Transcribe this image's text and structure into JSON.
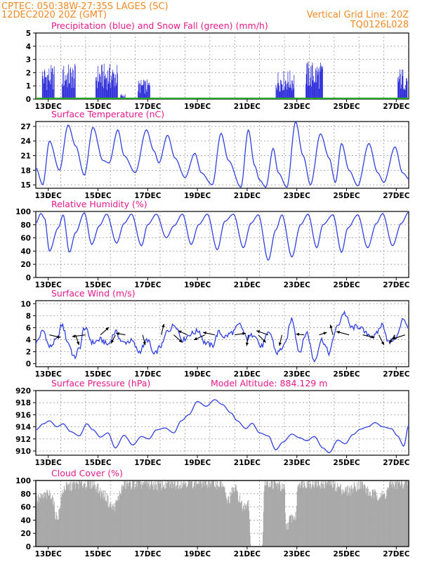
{
  "header": {
    "line1": "CPTEC:   050:38W-27:35S   LAGES (SC)",
    "line2": "12DEC2020 20Z (GMT)",
    "grid_note": "Vertical Grid Line: 20Z",
    "run_code": "TQ0126L028"
  },
  "colors": {
    "header": "#f08a24",
    "title": "#e6198c",
    "series_line": "#3040e0",
    "snow": "#22aa22",
    "cloud": "#a9a9a9",
    "grid": "#9a9a9a"
  },
  "x_ticks": [
    "13DEC",
    "15DEC",
    "17DEC",
    "19DEC",
    "21DEC",
    "23DEC",
    "25DEC",
    "27DEC"
  ],
  "chart_data": [
    {
      "type": "bar",
      "title": "Precipitation (blue) and Snow Fall (green) (mm/h)",
      "ylim": [
        0,
        5
      ],
      "yticks": [
        0,
        1,
        2,
        3,
        4,
        5
      ],
      "grid": true,
      "series": [
        {
          "name": "Precipitation",
          "color": "#2323d8",
          "events": [
            {
              "start": 0.25,
              "end": 0.75,
              "peak": 2.6
            },
            {
              "start": 1.05,
              "end": 1.6,
              "peak": 2.7
            },
            {
              "start": 2.4,
              "end": 3.3,
              "peak": 2.7
            },
            {
              "start": 3.4,
              "end": 3.6,
              "peak": 0.4
            },
            {
              "start": 4.1,
              "end": 4.6,
              "peak": 1.5
            },
            {
              "start": 9.65,
              "end": 10.4,
              "peak": 2.2
            },
            {
              "start": 10.85,
              "end": 11.55,
              "peak": 2.9
            },
            {
              "start": 14.55,
              "end": 14.95,
              "peak": 2.4
            }
          ]
        },
        {
          "name": "Snow Fall",
          "values_constant": 0
        }
      ]
    },
    {
      "type": "line",
      "title": "Surface Temperature (nC)",
      "ylim": [
        14.3,
        28
      ],
      "yticks": [
        15,
        18,
        21,
        24,
        27
      ],
      "grid": true,
      "points": [
        [
          0,
          18.5
        ],
        [
          0.28,
          15
        ],
        [
          0.55,
          24
        ],
        [
          0.95,
          18
        ],
        [
          1.3,
          27.3
        ],
        [
          1.6,
          23
        ],
        [
          1.95,
          17
        ],
        [
          2.3,
          26.8
        ],
        [
          2.7,
          20
        ],
        [
          2.95,
          19.5
        ],
        [
          3.3,
          26.3
        ],
        [
          3.55,
          21
        ],
        [
          4.0,
          17.5
        ],
        [
          4.45,
          26.3
        ],
        [
          4.75,
          22
        ],
        [
          4.95,
          19.5
        ],
        [
          5.3,
          25.2
        ],
        [
          5.6,
          20.5
        ],
        [
          6.0,
          16.5
        ],
        [
          6.4,
          21.5
        ],
        [
          6.65,
          17.5
        ],
        [
          7.1,
          15
        ],
        [
          7.45,
          25.6
        ],
        [
          7.75,
          20
        ],
        [
          8.25,
          14.5
        ],
        [
          8.55,
          26.3
        ],
        [
          8.8,
          19
        ],
        [
          9.0,
          16
        ],
        [
          9.25,
          14.5
        ],
        [
          9.55,
          22.5
        ],
        [
          9.75,
          17.5
        ],
        [
          10.1,
          14.5
        ],
        [
          10.45,
          28
        ],
        [
          10.75,
          21
        ],
        [
          11.05,
          15
        ],
        [
          11.45,
          25.5
        ],
        [
          11.8,
          20.5
        ],
        [
          12.05,
          15.5
        ],
        [
          12.3,
          23.5
        ],
        [
          12.6,
          18
        ],
        [
          12.95,
          14.8
        ],
        [
          13.4,
          23.5
        ],
        [
          13.75,
          17.5
        ],
        [
          14.0,
          15.5
        ],
        [
          14.45,
          22.8
        ],
        [
          14.75,
          17.5
        ],
        [
          15.05,
          16
        ]
      ]
    },
    {
      "type": "line",
      "title": "Relative Humidity (%)",
      "ylim": [
        0,
        100
      ],
      "yticks": [
        0,
        20,
        40,
        60,
        80,
        100
      ],
      "grid": true,
      "points": [
        [
          0,
          82
        ],
        [
          0.2,
          97
        ],
        [
          0.35,
          90
        ],
        [
          0.55,
          40
        ],
        [
          0.9,
          75
        ],
        [
          1.1,
          95
        ],
        [
          1.35,
          38
        ],
        [
          1.6,
          68
        ],
        [
          1.95,
          98
        ],
        [
          2.25,
          50
        ],
        [
          2.55,
          78
        ],
        [
          2.85,
          96
        ],
        [
          3.25,
          52
        ],
        [
          3.55,
          82
        ],
        [
          3.85,
          96
        ],
        [
          4.25,
          48
        ],
        [
          4.5,
          80
        ],
        [
          4.85,
          96
        ],
        [
          5.25,
          60
        ],
        [
          5.55,
          78
        ],
        [
          5.9,
          96
        ],
        [
          6.25,
          50
        ],
        [
          6.55,
          80
        ],
        [
          6.9,
          96
        ],
        [
          7.3,
          42
        ],
        [
          7.6,
          85
        ],
        [
          7.95,
          96
        ],
        [
          8.35,
          45
        ],
        [
          8.65,
          82
        ],
        [
          8.95,
          95
        ],
        [
          9.35,
          26
        ],
        [
          9.65,
          72
        ],
        [
          9.9,
          95
        ],
        [
          10.3,
          31
        ],
        [
          10.65,
          80
        ],
        [
          10.95,
          96
        ],
        [
          11.3,
          45
        ],
        [
          11.55,
          80
        ],
        [
          11.95,
          95
        ],
        [
          12.3,
          38
        ],
        [
          12.55,
          75
        ],
        [
          12.95,
          95
        ],
        [
          13.35,
          45
        ],
        [
          13.7,
          82
        ],
        [
          13.95,
          97
        ],
        [
          14.35,
          48
        ],
        [
          14.7,
          82
        ],
        [
          15.0,
          99
        ]
      ]
    },
    {
      "type": "line",
      "title": "Surface Wind (m/s)",
      "ylim": [
        -0.5,
        10.5
      ],
      "yticks": [
        0,
        2,
        4,
        6,
        8,
        10
      ],
      "grid": true,
      "points": [
        [
          0,
          3.5
        ],
        [
          0.3,
          5.5
        ],
        [
          0.55,
          2.8
        ],
        [
          0.85,
          4
        ],
        [
          1.05,
          6.5
        ],
        [
          1.3,
          3.5
        ],
        [
          1.55,
          1
        ],
        [
          1.75,
          2.5
        ],
        [
          1.95,
          6
        ],
        [
          2.3,
          3.5
        ],
        [
          2.6,
          4
        ],
        [
          2.9,
          3.2
        ],
        [
          3.2,
          5.3
        ],
        [
          3.5,
          3.5
        ],
        [
          3.85,
          3.8
        ],
        [
          4.15,
          2
        ],
        [
          4.5,
          4
        ],
        [
          4.75,
          1.5
        ],
        [
          5.05,
          3
        ],
        [
          5.3,
          5.5
        ],
        [
          5.6,
          6.5
        ],
        [
          5.9,
          4
        ],
        [
          6.25,
          5
        ],
        [
          6.55,
          5.5
        ],
        [
          6.8,
          3.5
        ],
        [
          7.1,
          3
        ],
        [
          7.35,
          5.2
        ],
        [
          7.6,
          4.5
        ],
        [
          7.9,
          5.2
        ],
        [
          8.2,
          6.5
        ],
        [
          8.5,
          4.2
        ],
        [
          8.8,
          5
        ],
        [
          9.05,
          2.8
        ],
        [
          9.4,
          5.2
        ],
        [
          9.7,
          1.8
        ],
        [
          10.0,
          3
        ],
        [
          10.3,
          7.5
        ],
        [
          10.6,
          2
        ],
        [
          10.9,
          5.2
        ],
        [
          11.2,
          0.5
        ],
        [
          11.5,
          4
        ],
        [
          11.8,
          1.8
        ],
        [
          12.1,
          6
        ],
        [
          12.4,
          8.5
        ],
        [
          12.7,
          6
        ],
        [
          13.0,
          6.2
        ],
        [
          13.3,
          5
        ],
        [
          13.6,
          4.5
        ],
        [
          13.95,
          6.5
        ],
        [
          14.2,
          3.5
        ],
        [
          14.5,
          4.5
        ],
        [
          14.8,
          7.5
        ],
        [
          15.0,
          6
        ]
      ],
      "arrows": [
        {
          "day": 0.55,
          "dx": 1.3,
          "dy": -0.3
        },
        {
          "day": 1.6,
          "dx": 0.4,
          "dy": -1.2
        },
        {
          "day": 2.0,
          "dx": -1.6,
          "dy": -0.2
        },
        {
          "day": 2.6,
          "dx": 1.0,
          "dy": 0.9
        },
        {
          "day": 3.2,
          "dx": -0.5,
          "dy": -1.0
        },
        {
          "day": 3.6,
          "dx": -1.1,
          "dy": 0.2
        },
        {
          "day": 4.3,
          "dx": 0.3,
          "dy": -1.2
        },
        {
          "day": 5.05,
          "dx": 0.3,
          "dy": 1.3
        },
        {
          "day": 5.55,
          "dx": 1.0,
          "dy": -0.9
        },
        {
          "day": 6.1,
          "dx": -1.1,
          "dy": 0.5
        },
        {
          "day": 6.8,
          "dx": -1.3,
          "dy": -0.6
        },
        {
          "day": 7.2,
          "dx": -1.4,
          "dy": 0.3
        },
        {
          "day": 8.0,
          "dx": 1.3,
          "dy": 0.2
        },
        {
          "day": 8.55,
          "dx": -0.2,
          "dy": -1.3
        },
        {
          "day": 8.95,
          "dx": 0.9,
          "dy": -0.9
        },
        {
          "day": 9.35,
          "dx": -1.4,
          "dy": 0.5
        },
        {
          "day": 9.9,
          "dx": -0.3,
          "dy": -1.3
        },
        {
          "day": 10.8,
          "dx": -1.0,
          "dy": 0.1
        },
        {
          "day": 11.4,
          "dx": 0.9,
          "dy": 0.3
        },
        {
          "day": 11.95,
          "dx": -0.3,
          "dy": 1.2
        },
        {
          "day": 12.6,
          "dx": -1.5,
          "dy": 0.4
        },
        {
          "day": 13.15,
          "dx": 1.4,
          "dy": -0.3
        },
        {
          "day": 13.8,
          "dx": 0.6,
          "dy": -1.2
        },
        {
          "day": 14.45,
          "dx": -0.7,
          "dy": -1.0
        },
        {
          "day": 14.85,
          "dx": -1.5,
          "dy": -0.5
        }
      ]
    },
    {
      "type": "line",
      "title": "Surface Pressure (hPa)",
      "subtitle": "Model Altitude: 884.129  m",
      "ylim": [
        909.3,
        920
      ],
      "yticks": [
        910,
        912,
        914,
        916,
        918,
        920
      ],
      "grid": true,
      "points": [
        [
          0,
          913.5
        ],
        [
          0.3,
          914.5
        ],
        [
          0.55,
          915
        ],
        [
          0.85,
          914
        ],
        [
          1.1,
          914.5
        ],
        [
          1.4,
          913.2
        ],
        [
          1.75,
          912.5
        ],
        [
          2.05,
          914.5
        ],
        [
          2.3,
          913.5
        ],
        [
          2.6,
          912.3
        ],
        [
          2.9,
          913
        ],
        [
          3.2,
          910.5
        ],
        [
          3.55,
          912.6
        ],
        [
          3.9,
          911
        ],
        [
          4.25,
          912.4
        ],
        [
          4.55,
          912
        ],
        [
          4.85,
          913.5
        ],
        [
          5.2,
          913.8
        ],
        [
          5.55,
          913
        ],
        [
          5.85,
          915
        ],
        [
          6.15,
          916
        ],
        [
          6.5,
          918.2
        ],
        [
          6.85,
          917.4
        ],
        [
          7.2,
          918.5
        ],
        [
          7.5,
          917.7
        ],
        [
          7.85,
          916.3
        ],
        [
          8.1,
          915
        ],
        [
          8.45,
          913.7
        ],
        [
          8.7,
          914.6
        ],
        [
          9.0,
          913
        ],
        [
          9.35,
          912.5
        ],
        [
          9.65,
          910.2
        ],
        [
          9.95,
          911.5
        ],
        [
          10.3,
          912.8
        ],
        [
          10.6,
          912.2
        ],
        [
          10.9,
          911.7
        ],
        [
          11.2,
          912.4
        ],
        [
          11.55,
          910.5
        ],
        [
          11.8,
          909.7
        ],
        [
          12.15,
          911.8
        ],
        [
          12.45,
          911.2
        ],
        [
          12.75,
          912.7
        ],
        [
          13.05,
          913.6
        ],
        [
          13.35,
          914
        ],
        [
          13.65,
          914.7
        ],
        [
          13.95,
          914
        ],
        [
          14.3,
          913.7
        ],
        [
          14.55,
          912.5
        ],
        [
          14.8,
          910.8
        ],
        [
          15.0,
          914.3
        ]
      ]
    },
    {
      "type": "area",
      "title": "Cloud Cover (%)",
      "ylim": [
        0,
        100
      ],
      "yticks": [
        0,
        20,
        40,
        60,
        80,
        100
      ],
      "grid": true,
      "points": [
        [
          0,
          72
        ],
        [
          0.6,
          80
        ],
        [
          0.85,
          45
        ],
        [
          1.15,
          90
        ],
        [
          1.75,
          96
        ],
        [
          2.3,
          96
        ],
        [
          2.7,
          80
        ],
        [
          3.1,
          60
        ],
        [
          3.6,
          95
        ],
        [
          4.4,
          96
        ],
        [
          4.95,
          94
        ],
        [
          5.6,
          96
        ],
        [
          6.0,
          98
        ],
        [
          6.5,
          98
        ],
        [
          7.0,
          98
        ],
        [
          7.5,
          95
        ],
        [
          7.7,
          70
        ],
        [
          8.0,
          88
        ],
        [
          8.35,
          60
        ],
        [
          8.55,
          70
        ],
        [
          8.65,
          0
        ],
        [
          9.1,
          0
        ],
        [
          9.2,
          98
        ],
        [
          9.65,
          95
        ],
        [
          10.0,
          88
        ],
        [
          10.05,
          30
        ],
        [
          10.3,
          45
        ],
        [
          10.45,
          45
        ],
        [
          10.55,
          98
        ],
        [
          11.5,
          96
        ],
        [
          11.8,
          98
        ],
        [
          12.05,
          92
        ],
        [
          12.5,
          85
        ],
        [
          13.05,
          95
        ],
        [
          13.5,
          80
        ],
        [
          14.0,
          78
        ],
        [
          14.3,
          96
        ],
        [
          14.6,
          96
        ],
        [
          15.0,
          98
        ]
      ]
    }
  ]
}
